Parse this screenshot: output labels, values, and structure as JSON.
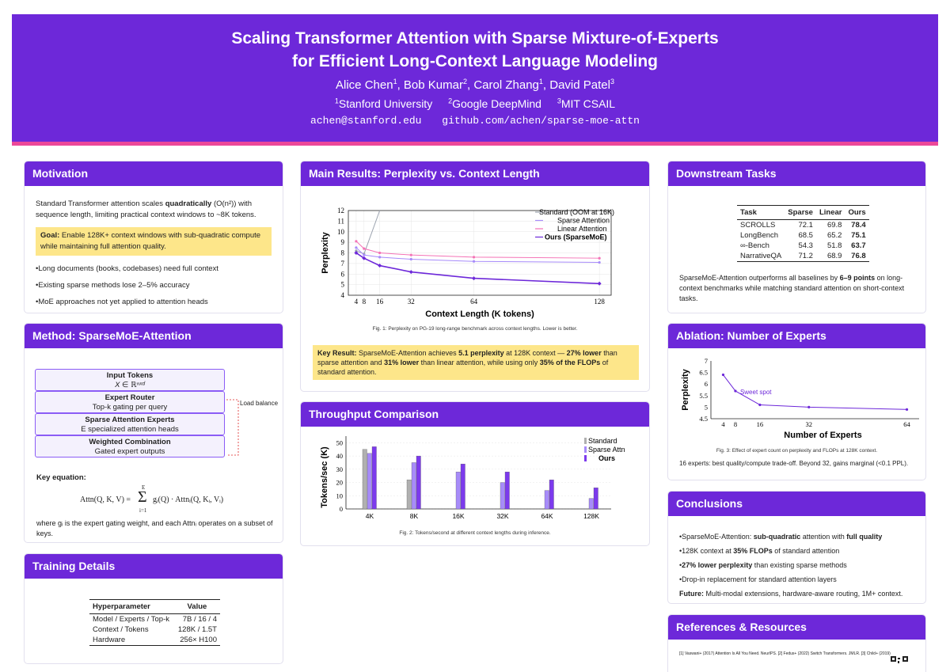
{
  "header": {
    "title_line1": "Scaling Transformer Attention with Sparse Mixture-of-Experts",
    "title_line2": "for Efficient Long-Context Language Modeling",
    "authors": [
      {
        "name": "Alice Chen",
        "sup": "1"
      },
      {
        "name": "Bob Kumar",
        "sup": "2"
      },
      {
        "name": "Carol Zhang",
        "sup": "1"
      },
      {
        "name": "David Patel",
        "sup": "3"
      }
    ],
    "affiliations": [
      {
        "sup": "1",
        "name": "Stanford University"
      },
      {
        "sup": "2",
        "name": "Google DeepMind"
      },
      {
        "sup": "3",
        "name": "MIT CSAIL"
      }
    ],
    "email": "achen@stanford.edu",
    "repo": "github.com/achen/sparse-moe-attn"
  },
  "motivation": {
    "heading": "Motivation",
    "intro_a": "Standard Transformer attention scales ",
    "intro_bold": "quadratically",
    "intro_b": " (O(n²)) with sequence length, limiting practical context windows to ~8K tokens.",
    "goal_label": "Goal:",
    "goal_text": " Enable 128K+ context windows with sub-quadratic compute while maintaining full attention quality.",
    "bullets": [
      "Long documents (books, codebases) need full context",
      "Existing sparse methods lose 2–5% accuracy",
      "MoE approaches not yet applied to attention heads"
    ]
  },
  "method": {
    "heading": "Method: SparseMoE-Attention",
    "boxes": [
      {
        "title": "Input Tokens",
        "sub": "X ∈ ℝⁿˣᵈ"
      },
      {
        "title": "Expert Router",
        "sub": "Top-k gating per query"
      },
      {
        "title": "Sparse Attention Experts",
        "sub": "E specialized attention heads"
      },
      {
        "title": "Weighted Combination",
        "sub": "Gated expert outputs"
      }
    ],
    "side_label": "Load balance",
    "key_eq_label": "Key equation:",
    "equation_lhs": "Attn(Q, K, V) = ",
    "equation_top": "E",
    "equation_sigma": "Σ",
    "equation_bot": "i=1",
    "equation_rhs": "gᵢ(Q) · Attnᵢ(Q, Kᵢ, Vᵢ)",
    "eq_note": "where gᵢ is the expert gating weight, and each Attnᵢ operates on a subset of keys."
  },
  "training": {
    "heading": "Training Details",
    "headers": [
      "Hyperparameter",
      "Value"
    ],
    "rows": [
      [
        "Model / Experts / Top-k",
        "7B / 16 / 4"
      ],
      [
        "Context / Tokens",
        "128K / 1.5T"
      ],
      [
        "Hardware",
        "256× H100"
      ]
    ]
  },
  "main_results": {
    "heading": "Main Results: Perplexity vs. Context Length",
    "caption": "Fig. 1: Perplexity on PG-19 long-range benchmark across context lengths. Lower is better.",
    "key_label": "Key Result:",
    "key_a": " SparseMoE-Attention achieves ",
    "key_b1": "5.1 perplexity",
    "key_c": " at 128K context — ",
    "key_b2": "27% lower",
    "key_d": " than sparse attention and ",
    "key_b3": "31% lower",
    "key_e": " than linear attention, while using only ",
    "key_b4": "35% of the FLOPs",
    "key_f": " of standard attention."
  },
  "throughput": {
    "heading": "Throughput Comparison",
    "caption": "Fig. 2: Tokens/second at different context lengths during inference."
  },
  "downstream": {
    "heading": "Downstream Tasks",
    "headers": [
      "Task",
      "Sparse",
      "Linear",
      "Ours"
    ],
    "rows": [
      [
        "SCROLLS",
        "72.1",
        "69.8",
        "78.4"
      ],
      [
        "LongBench",
        "68.5",
        "65.2",
        "75.1"
      ],
      [
        "∞-Bench",
        "54.3",
        "51.8",
        "63.7"
      ],
      [
        "NarrativeQA",
        "71.2",
        "68.9",
        "76.8"
      ]
    ],
    "text_a": "SparseMoE-Attention outperforms all baselines by ",
    "text_bold": "6–9 points",
    "text_b": " on long-context benchmarks while matching standard attention on short-context tasks."
  },
  "ablation": {
    "heading": "Ablation: Number of Experts",
    "caption": "Fig. 3: Effect of expert count on perplexity and FLOPs at 128K context.",
    "note": "16 experts: best quality/compute trade-off. Beyond 32, gains marginal (<0.1 PPL)."
  },
  "conclusions": {
    "heading": "Conclusions",
    "b1_a": "SparseMoE-Attention: ",
    "b1_b": "sub-quadratic",
    "b1_c": " attention with ",
    "b1_d": "full quality",
    "b2_a": "128K context at ",
    "b2_b": "35% FLOPs",
    "b2_c": " of standard attention",
    "b3_b": "27% lower perplexity",
    "b3_c": " than existing sparse methods",
    "b4": "Drop-in replacement for standard attention layers",
    "future_label": "Future:",
    "future_text": " Multi-modal extensions, hardware-aware routing, 1M+ context."
  },
  "references": {
    "heading": "References & Resources",
    "text": "[1] Vaswani+ (2017) Attention Is All You Need. NeurIPS. [2] Fedus+ (2022) Switch Transformers. JMLR. [3] Child+ (2019)"
  },
  "chart_data": [
    {
      "type": "line",
      "x": [
        4,
        8,
        16,
        32,
        64,
        128
      ],
      "xlabel": "Context Length (K tokens)",
      "ylabel": "Perplexity",
      "ylim": [
        4,
        12
      ],
      "xlim": [
        0,
        134
      ],
      "xticks": [
        4,
        8,
        16,
        32,
        64,
        128
      ],
      "yticks": [
        4,
        5,
        6,
        7,
        8,
        9,
        10,
        11,
        12
      ],
      "legend_position": "top-right",
      "series": [
        {
          "name": "Standard (OOM at 16K)",
          "x": [
            4,
            8,
            16
          ],
          "values": [
            8.2,
            7.9,
            12
          ],
          "color": "#9ca3af"
        },
        {
          "name": "Sparse Attention",
          "values": [
            8.5,
            7.8,
            7.6,
            7.4,
            7.2,
            7.1
          ],
          "color": "#a78bfa"
        },
        {
          "name": "Linear Attention",
          "values": [
            9.1,
            8.4,
            8.0,
            7.8,
            7.6,
            7.5
          ],
          "color": "#f472b6"
        },
        {
          "name": "Ours (SparseMoE)",
          "values": [
            8.0,
            7.5,
            6.8,
            6.2,
            5.6,
            5.1
          ],
          "color": "#6d28d9"
        }
      ]
    },
    {
      "type": "bar",
      "categories": [
        "4K",
        "8K",
        "16K",
        "32K",
        "64K",
        "128K"
      ],
      "ylabel": "Tokens/sec (K)",
      "ylim": [
        0,
        55
      ],
      "yticks": [
        0,
        10,
        20,
        30,
        40,
        50
      ],
      "legend_position": "top-right",
      "series": [
        {
          "name": "Standard",
          "values": [
            45,
            22,
            null,
            null,
            null,
            null
          ],
          "color": "#b0b0b0"
        },
        {
          "name": "Sparse Attn",
          "values": [
            42,
            35,
            28,
            20,
            14,
            8
          ],
          "color": "#a78bfa"
        },
        {
          "name": "Ours",
          "values": [
            47,
            40,
            34,
            28,
            22,
            16
          ],
          "color": "#7c3aed"
        }
      ]
    },
    {
      "type": "line",
      "x": [
        4,
        8,
        16,
        32,
        64
      ],
      "xticks": [
        4,
        8,
        16,
        32,
        64
      ],
      "yticks": [
        4.5,
        5,
        5.5,
        6,
        6.5,
        7
      ],
      "ylim": [
        4.5,
        7
      ],
      "xlabel": "Number of Experts",
      "ylabel": "Perplexity",
      "annotation": "Sweet spot",
      "series": [
        {
          "values": [
            6.4,
            5.7,
            5.1,
            5.0,
            4.9
          ],
          "color": "#6d28d9"
        }
      ]
    }
  ]
}
